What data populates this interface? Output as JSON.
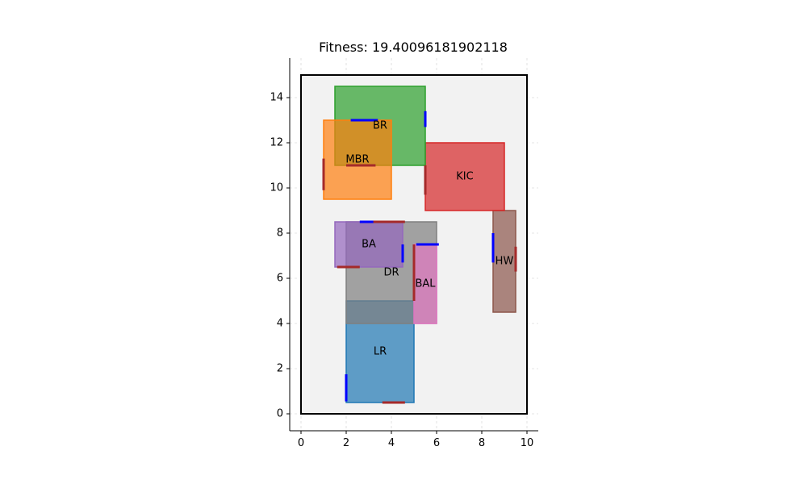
{
  "chart_data": {
    "type": "floorplan",
    "title": "Fitness: 19.40096181902118",
    "xlim": [
      -0.5,
      10.5
    ],
    "ylim": [
      -0.75,
      15.75
    ],
    "xticks": [
      0,
      2,
      4,
      6,
      8,
      10
    ],
    "yticks": [
      0,
      2,
      4,
      6,
      8,
      10,
      12,
      14
    ],
    "grid": true,
    "boundary": {
      "x0": 0,
      "y0": 0,
      "x1": 10,
      "y1": 15,
      "fill": "#f2f2f2",
      "edge": "#000000"
    },
    "rooms": [
      {
        "name": "LR",
        "x0": 2,
        "y0": 0.5,
        "x1": 5,
        "y1": 5,
        "fill": "#1f77b4",
        "edge": "#1f77b4"
      },
      {
        "name": "DR",
        "x0": 2,
        "y0": 4,
        "x1": 6,
        "y1": 8.5,
        "fill": "#7f7f7f",
        "edge": "#7f7f7f"
      },
      {
        "name": "BAL",
        "x0": 5,
        "y0": 4,
        "x1": 6,
        "y1": 7.5,
        "fill": "#e377c2",
        "edge": "#e377c2"
      },
      {
        "name": "BA",
        "x0": 1.5,
        "y0": 6.5,
        "x1": 4.5,
        "y1": 8.5,
        "fill": "#9467bd",
        "edge": "#9467bd"
      },
      {
        "name": "HW",
        "x0": 8.5,
        "y0": 4.5,
        "x1": 9.5,
        "y1": 9,
        "fill": "#8c564b",
        "edge": "#8c564b"
      },
      {
        "name": "KIC",
        "x0": 5.5,
        "y0": 9,
        "x1": 9,
        "y1": 12,
        "fill": "#d62728",
        "edge": "#d62728"
      },
      {
        "name": "BR",
        "x0": 1.5,
        "y0": 11,
        "x1": 5.5,
        "y1": 14.5,
        "fill": "#2ca02c",
        "edge": "#2ca02c"
      },
      {
        "name": "MBR",
        "x0": 1,
        "y0": 9.5,
        "x1": 4,
        "y1": 13,
        "fill": "#ff7f0e",
        "edge": "#ff7f0e"
      }
    ],
    "room_labels": [
      {
        "name": "LR",
        "x": 3.5,
        "y": 2.75
      },
      {
        "name": "DR",
        "x": 4.0,
        "y": 6.25
      },
      {
        "name": "BAL",
        "x": 5.5,
        "y": 5.75
      },
      {
        "name": "BA",
        "x": 3.0,
        "y": 7.5
      },
      {
        "name": "HW",
        "x": 9.0,
        "y": 6.75
      },
      {
        "name": "KIC",
        "x": 7.25,
        "y": 10.5
      },
      {
        "name": "BR",
        "x": 3.5,
        "y": 12.75
      },
      {
        "name": "MBR",
        "x": 2.5,
        "y": 11.25
      }
    ],
    "openings": [
      {
        "kind": "door",
        "color": "#0000ff",
        "x0": 2,
        "y0": 0.55,
        "x1": 2,
        "y1": 1.75
      },
      {
        "kind": "window",
        "color": "#a52a2a",
        "x0": 3.6,
        "y0": 0.5,
        "x1": 4.6,
        "y1": 0.5
      },
      {
        "kind": "door",
        "color": "#0000ff",
        "x0": 5.1,
        "y0": 7.5,
        "x1": 6.1,
        "y1": 7.5
      },
      {
        "kind": "window",
        "color": "#a52a2a",
        "x0": 5,
        "y0": 5.0,
        "x1": 5,
        "y1": 7.5
      },
      {
        "kind": "door",
        "color": "#0000ff",
        "x0": 4.5,
        "y0": 6.7,
        "x1": 4.5,
        "y1": 7.5
      },
      {
        "kind": "window",
        "color": "#a52a2a",
        "x0": 1.6,
        "y0": 6.5,
        "x1": 2.6,
        "y1": 6.5
      },
      {
        "kind": "door",
        "color": "#0000ff",
        "x0": 2.6,
        "y0": 8.5,
        "x1": 3.3,
        "y1": 8.5
      },
      {
        "kind": "window",
        "color": "#a52a2a",
        "x0": 3.2,
        "y0": 8.5,
        "x1": 4.6,
        "y1": 8.5
      },
      {
        "kind": "door",
        "color": "#0000ff",
        "x0": 8.5,
        "y0": 6.7,
        "x1": 8.5,
        "y1": 8.0
      },
      {
        "kind": "window",
        "color": "#a52a2a",
        "x0": 9.5,
        "y0": 6.3,
        "x1": 9.5,
        "y1": 7.4
      },
      {
        "kind": "window",
        "color": "#a52a2a",
        "x0": 5.5,
        "y0": 9.7,
        "x1": 5.5,
        "y1": 11.0
      },
      {
        "kind": "door",
        "color": "#0000ff",
        "x0": 5.5,
        "y0": 12.7,
        "x1": 5.5,
        "y1": 13.4
      },
      {
        "kind": "door",
        "color": "#0000ff",
        "x0": 2.2,
        "y0": 13,
        "x1": 3.4,
        "y1": 13
      },
      {
        "kind": "window",
        "color": "#a52a2a",
        "x0": 2.0,
        "y0": 11,
        "x1": 3.3,
        "y1": 11
      },
      {
        "kind": "window",
        "color": "#a52a2a",
        "x0": 1.0,
        "y0": 9.9,
        "x1": 1.0,
        "y1": 11.3
      }
    ]
  }
}
